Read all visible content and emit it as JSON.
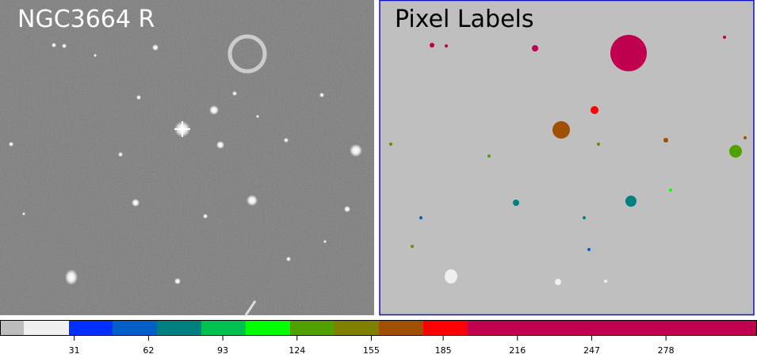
{
  "panels": [
    {
      "title": "NGC3664 R"
    },
    {
      "title": "Pixel Labels"
    }
  ],
  "colorbar": {
    "range": [
      0,
      316
    ],
    "ticks": [
      31,
      62,
      93,
      124,
      155,
      185,
      216,
      247,
      278
    ],
    "colors": [
      "#bdbdbd",
      "#f0f0f0",
      "#0030ff",
      "#0060c8",
      "#008080",
      "#00c050",
      "#00ff00",
      "#50a000",
      "#808000",
      "#a05000",
      "#ff0000",
      "#c0004e"
    ]
  }
}
